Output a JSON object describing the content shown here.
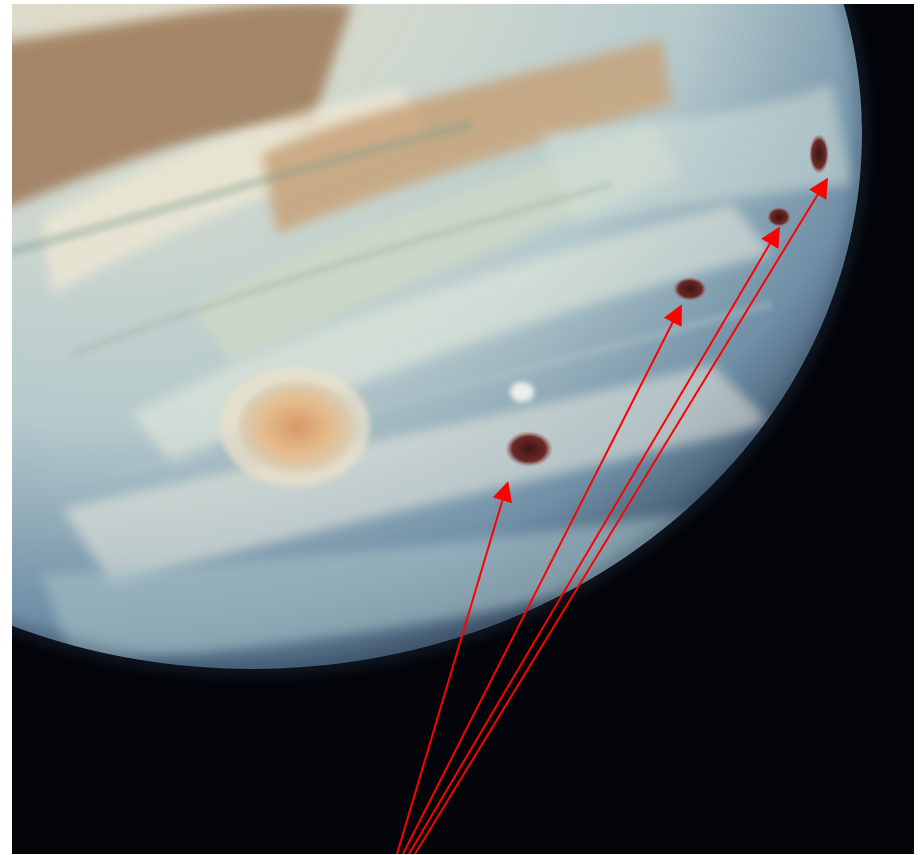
{
  "image": {
    "subject": "planet-photograph",
    "background_color": "#03050a",
    "annotation_color": "#ff0000"
  },
  "annotations": {
    "arrow_count": 4
  }
}
